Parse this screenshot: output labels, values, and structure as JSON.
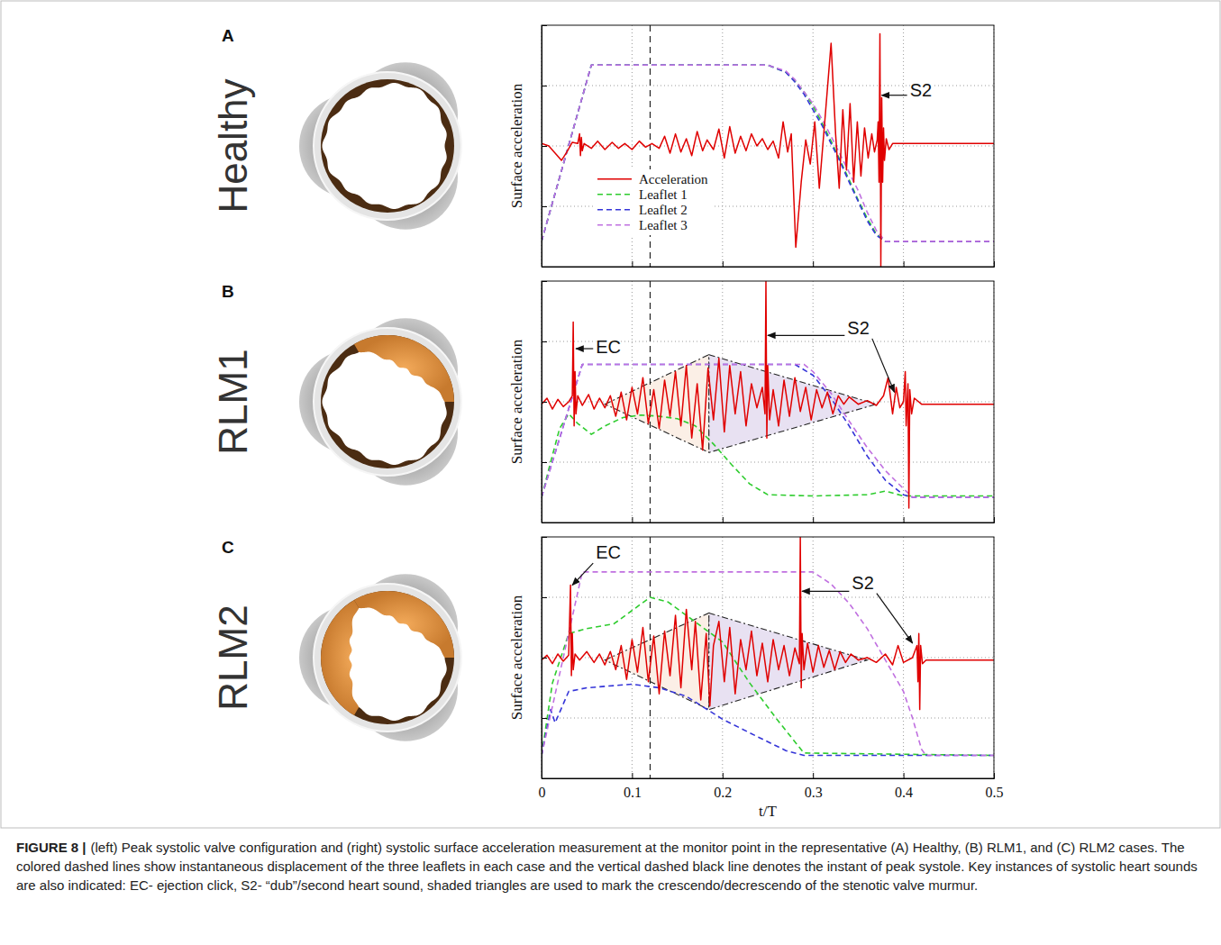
{
  "caption": {
    "label": "FIGURE 8 |",
    "text": "(left) Peak systolic valve configuration and (right) systolic surface acceleration measurement at the monitor point in the representative (A) Healthy, (B) RLM1, and (C) RLM2 cases. The colored dashed lines show instantaneous displacement of the three leaflets in each case and the vertical dashed black line denotes the instant of peak systole. Key instances of systolic heart sounds are also indicated: EC- ejection click, S2- “dub”/second heart sound, shaded triangles are used to mark the crescendo/decrescendo of the stenotic valve murmur."
  },
  "chart_data": [
    {
      "type": "line",
      "panel": "A",
      "title": "Healthy",
      "ylabel": "Surface acceleration",
      "xlim": [
        0,
        0.5
      ],
      "ylim": [
        -1,
        1
      ],
      "xticks": [
        0,
        0.1,
        0.2,
        0.3,
        0.4,
        0.5
      ],
      "yticks": [
        -0.5,
        0,
        0.5
      ],
      "grid": true,
      "tick_labels": false,
      "legend": "lower left",
      "peak_systole": 0.12,
      "series": [
        {
          "name": "Acceleration",
          "color": "#e00000",
          "line_style": "solid",
          "x": [
            0,
            0.008,
            0.015,
            0.022,
            0.028,
            0.034,
            0.04,
            0.042,
            0.043,
            0.044,
            0.045,
            0.047,
            0.055,
            0.062,
            0.07,
            0.078,
            0.085,
            0.092,
            0.1,
            0.108,
            0.115,
            0.122,
            0.13,
            0.136,
            0.142,
            0.148,
            0.154,
            0.16,
            0.166,
            0.172,
            0.178,
            0.183,
            0.19,
            0.196,
            0.202,
            0.208,
            0.214,
            0.22,
            0.226,
            0.232,
            0.238,
            0.244,
            0.25,
            0.256,
            0.262,
            0.267,
            0.272,
            0.276,
            0.281,
            0.287,
            0.292,
            0.297,
            0.302,
            0.307,
            0.313,
            0.32,
            0.325,
            0.329,
            0.333,
            0.337,
            0.341,
            0.345,
            0.349,
            0.353,
            0.357,
            0.361,
            0.365,
            0.368,
            0.371,
            0.372,
            0.373,
            0.374,
            0.375,
            0.376,
            0.377,
            0.378,
            0.379,
            0.381,
            0.384,
            0.388,
            0.45,
            0.5
          ],
          "values": [
            0.02,
            0,
            -0.06,
            -0.12,
            -0.05,
            0.03,
            0.02,
            0.1,
            -0.08,
            0.07,
            -0.04,
            0.02,
            -0.02,
            0.04,
            -0.03,
            0.03,
            -0.02,
            0.02,
            -0.03,
            0.04,
            -0.01,
            0.02,
            -0.02,
            0.08,
            -0.06,
            0.1,
            -0.05,
            0.06,
            -0.08,
            0.12,
            -0.04,
            0.05,
            -0.03,
            0.14,
            -0.1,
            0.16,
            -0.06,
            0.08,
            -0.04,
            0.1,
            0,
            0.06,
            -0.03,
            0.04,
            -0.1,
            0.2,
            -0.05,
            0.1,
            -0.84,
            -0.3,
            0.05,
            -0.15,
            0.2,
            -0.35,
            0.2,
            0.85,
            0.1,
            -0.35,
            0.3,
            -0.2,
            0.35,
            -0.3,
            0.2,
            -0.25,
            0.15,
            -0.1,
            0.1,
            -0.05,
            0.05,
            0.2,
            -0.3,
            0.93,
            -1.0,
            0.4,
            -0.3,
            0.15,
            -0.12,
            0.06,
            -0.03,
            0.02,
            0.02,
            0.02
          ]
        },
        {
          "name": "Leaflet 1",
          "color": "#2ecc2e",
          "line_style": "dashed",
          "x": [
            0,
            0.055,
            0.25,
            0.27,
            0.28,
            0.29,
            0.3,
            0.31,
            0.32,
            0.33,
            0.34,
            0.35,
            0.36,
            0.37,
            0.38,
            0.5
          ],
          "values": [
            -0.79,
            0.67,
            0.67,
            0.61,
            0.54,
            0.45,
            0.33,
            0.19,
            0.04,
            -0.12,
            -0.28,
            -0.45,
            -0.6,
            -0.73,
            -0.79,
            -0.79
          ]
        },
        {
          "name": "Leaflet 2",
          "color": "#3535d8",
          "line_style": "dashed",
          "x": [
            0,
            0.055,
            0.25,
            0.27,
            0.28,
            0.29,
            0.3,
            0.31,
            0.32,
            0.33,
            0.34,
            0.35,
            0.36,
            0.37,
            0.38,
            0.5
          ],
          "values": [
            -0.79,
            0.67,
            0.67,
            0.61,
            0.53,
            0.43,
            0.3,
            0.17,
            0.02,
            -0.13,
            -0.3,
            -0.46,
            -0.62,
            -0.74,
            -0.79,
            -0.79
          ]
        },
        {
          "name": "Leaflet 3",
          "color": "#c070e0",
          "line_style": "dashed",
          "x": [
            0,
            0.055,
            0.25,
            0.27,
            0.28,
            0.29,
            0.3,
            0.31,
            0.32,
            0.33,
            0.34,
            0.35,
            0.36,
            0.37,
            0.38,
            0.5
          ],
          "values": [
            -0.79,
            0.67,
            0.67,
            0.62,
            0.55,
            0.45,
            0.35,
            0.22,
            0.08,
            -0.07,
            -0.22,
            -0.37,
            -0.55,
            -0.7,
            -0.79,
            -0.79
          ]
        }
      ],
      "annotations": [
        {
          "text": "S2",
          "x": 0.407,
          "y": 0.45,
          "targets": [
            [
              0.376,
              0.42
            ]
          ]
        }
      ]
    },
    {
      "type": "line",
      "panel": "B",
      "title": "RLM1",
      "ylabel": "Surface acceleration",
      "xlim": [
        0,
        0.5
      ],
      "ylim": [
        -1,
        1
      ],
      "xticks": [
        0,
        0.1,
        0.2,
        0.3,
        0.4,
        0.5
      ],
      "yticks": [
        -0.5,
        0,
        0.5
      ],
      "grid": true,
      "tick_labels": false,
      "peak_systole": 0.12,
      "murmur": {
        "x": [
          0.07,
          0.185,
          0.37
        ],
        "upper": [
          -0.02,
          0.39,
          -0.02
        ],
        "lower": [
          -0.02,
          -0.42,
          -0.02
        ]
      },
      "series": [
        {
          "color": "#e00000",
          "line_style": "solid",
          "x": [
            0,
            0.006,
            0.012,
            0.018,
            0.024,
            0.03,
            0.034,
            0.035,
            0.036,
            0.037,
            0.038,
            0.04,
            0.045,
            0.052,
            0.058,
            0.064,
            0.07,
            0.076,
            0.082,
            0.088,
            0.094,
            0.1,
            0.106,
            0.112,
            0.118,
            0.124,
            0.13,
            0.136,
            0.142,
            0.148,
            0.154,
            0.16,
            0.166,
            0.172,
            0.178,
            0.184,
            0.19,
            0.196,
            0.202,
            0.208,
            0.214,
            0.22,
            0.226,
            0.232,
            0.238,
            0.244,
            0.247,
            0.248,
            0.249,
            0.25,
            0.252,
            0.256,
            0.262,
            0.268,
            0.274,
            0.28,
            0.286,
            0.292,
            0.298,
            0.304,
            0.31,
            0.316,
            0.322,
            0.328,
            0.334,
            0.34,
            0.35,
            0.36,
            0.37,
            0.378,
            0.383,
            0.388,
            0.392,
            0.396,
            0.4,
            0.402,
            0.403,
            0.405,
            0.406,
            0.407,
            0.409,
            0.412,
            0.42,
            0.5
          ],
          "values": [
            -0.02,
            0.03,
            -0.06,
            0.02,
            -0.04,
            0,
            0.05,
            0.66,
            -0.2,
            0.25,
            -0.1,
            0.05,
            -0.03,
            0.06,
            -0.06,
            0.03,
            -0.05,
            0.05,
            -0.12,
            0.08,
            -0.15,
            0.12,
            -0.1,
            0.2,
            -0.18,
            0.1,
            -0.22,
            0.18,
            -0.12,
            0.25,
            -0.2,
            0.3,
            -0.3,
            0.15,
            -0.4,
            0.28,
            -0.15,
            0.36,
            -0.25,
            0.3,
            -0.1,
            0.25,
            -0.2,
            0.15,
            -0.05,
            0.12,
            -0.1,
            1.0,
            -0.3,
            0.3,
            -0.15,
            0.1,
            -0.2,
            0.18,
            -0.12,
            0.2,
            -0.08,
            0.12,
            -0.15,
            0.1,
            -0.05,
            0.08,
            -0.1,
            0.05,
            -0.02,
            0.04,
            -0.02,
            0.01,
            -0.03,
            0.05,
            0.2,
            -0.1,
            0.12,
            -0.05,
            0,
            0.25,
            -0.2,
            0.15,
            -0.88,
            0.1,
            -0.1,
            0.03,
            -0.02,
            -0.02
          ]
        },
        {
          "color": "#2ecc2e",
          "line_style": "dashed",
          "x": [
            0,
            0.01,
            0.02,
            0.03,
            0.04,
            0.055,
            0.07,
            0.09,
            0.11,
            0.13,
            0.15,
            0.17,
            0.19,
            0.21,
            0.23,
            0.25,
            0.3,
            0.36,
            0.38,
            0.4,
            0.5
          ],
          "values": [
            -0.79,
            -0.5,
            -0.22,
            -0.1,
            -0.18,
            -0.27,
            -0.2,
            -0.13,
            -0.11,
            -0.12,
            -0.14,
            -0.2,
            -0.35,
            -0.52,
            -0.68,
            -0.77,
            -0.78,
            -0.77,
            -0.74,
            -0.78,
            -0.78
          ]
        },
        {
          "color": "#3535d8",
          "line_style": "dashed",
          "x": [
            0,
            0.045,
            0.28,
            0.3,
            0.32,
            0.34,
            0.36,
            0.38,
            0.4,
            0.41,
            0.5
          ],
          "values": [
            -0.79,
            0.31,
            0.31,
            0.22,
            0.03,
            -0.2,
            -0.45,
            -0.65,
            -0.77,
            -0.79,
            -0.79
          ]
        },
        {
          "color": "#c070e0",
          "line_style": "dashed",
          "x": [
            0,
            0.045,
            0.29,
            0.3,
            0.32,
            0.34,
            0.36,
            0.38,
            0.4,
            0.41,
            0.5
          ],
          "values": [
            -0.79,
            0.31,
            0.31,
            0.25,
            0.07,
            -0.16,
            -0.38,
            -0.57,
            -0.72,
            -0.79,
            -0.79
          ]
        }
      ],
      "annotations": [
        {
          "text": "EC",
          "x": 0.06,
          "y": 0.44,
          "targets": [
            [
              0.038,
              0.44
            ]
          ]
        },
        {
          "text": "S2",
          "x": 0.338,
          "y": 0.6,
          "targets": [
            [
              0.25,
              0.55
            ],
            [
              0.39,
              0.08
            ]
          ]
        }
      ]
    },
    {
      "type": "line",
      "panel": "C",
      "title": "RLM2",
      "ylabel": "Surface acceleration",
      "xlabel": "t/T",
      "xlim": [
        0,
        0.5
      ],
      "ylim": [
        -1,
        1
      ],
      "xticks": [
        0,
        0.1,
        0.2,
        0.3,
        0.4,
        0.5
      ],
      "yticks": [
        -0.5,
        0,
        0.5
      ],
      "grid": true,
      "tick_labels": "x",
      "peak_systole": 0.12,
      "murmur": {
        "x": [
          0.07,
          0.185,
          0.36
        ],
        "upper": [
          -0.02,
          0.37,
          -0.02
        ],
        "lower": [
          -0.02,
          -0.43,
          -0.02
        ]
      },
      "series": [
        {
          "color": "#e00000",
          "line_style": "solid",
          "x": [
            0,
            0.006,
            0.012,
            0.018,
            0.024,
            0.03,
            0.032,
            0.033,
            0.034,
            0.035,
            0.037,
            0.042,
            0.05,
            0.058,
            0.064,
            0.07,
            0.076,
            0.082,
            0.088,
            0.094,
            0.1,
            0.106,
            0.112,
            0.118,
            0.124,
            0.13,
            0.136,
            0.142,
            0.148,
            0.154,
            0.16,
            0.166,
            0.17,
            0.176,
            0.182,
            0.186,
            0.19,
            0.196,
            0.202,
            0.208,
            0.214,
            0.22,
            0.226,
            0.232,
            0.238,
            0.244,
            0.25,
            0.256,
            0.262,
            0.268,
            0.274,
            0.28,
            0.285,
            0.286,
            0.287,
            0.288,
            0.29,
            0.294,
            0.3,
            0.306,
            0.312,
            0.318,
            0.324,
            0.33,
            0.336,
            0.342,
            0.35,
            0.36,
            0.37,
            0.38,
            0.388,
            0.394,
            0.4,
            0.41,
            0.415,
            0.416,
            0.417,
            0.418,
            0.419,
            0.421,
            0.425,
            0.5
          ],
          "values": [
            -0.02,
            0.02,
            -0.05,
            0.03,
            -0.03,
            0.02,
            0.6,
            -0.15,
            0.2,
            -0.1,
            0.03,
            -0.02,
            0.05,
            -0.04,
            0.03,
            -0.06,
            0.05,
            -0.1,
            0.1,
            -0.18,
            0.15,
            -0.12,
            0.25,
            -0.2,
            0.18,
            -0.3,
            0.22,
            -0.15,
            0.35,
            -0.25,
            0.4,
            -0.1,
            0.3,
            -0.35,
            0.2,
            -0.4,
            0.1,
            0.3,
            -0.2,
            0.25,
            -0.3,
            0.15,
            -0.1,
            0.22,
            -0.15,
            0.12,
            -0.2,
            0.15,
            -0.1,
            0.1,
            -0.15,
            0.08,
            -0.05,
            1.0,
            -0.25,
            0.2,
            -0.1,
            0.12,
            -0.12,
            0.1,
            -0.08,
            0.06,
            -0.1,
            0.05,
            -0.04,
            0.03,
            -0.02,
            0,
            -0.04,
            0.03,
            -0.06,
            0.1,
            -0.04,
            0,
            0.1,
            -0.2,
            0.2,
            -0.43,
            0.1,
            -0.05,
            -0.02,
            -0.02
          ]
        },
        {
          "color": "#2ecc2e",
          "line_style": "dashed",
          "x": [
            0,
            0.012,
            0.03,
            0.05,
            0.08,
            0.1,
            0.12,
            0.14,
            0.16,
            0.2,
            0.23,
            0.26,
            0.29,
            0.5
          ],
          "values": [
            -0.81,
            -0.21,
            0.2,
            0.24,
            0.28,
            0.39,
            0.5,
            0.46,
            0.35,
            0.13,
            -0.21,
            -0.51,
            -0.79,
            -0.81
          ]
        },
        {
          "color": "#3535d8",
          "line_style": "dashed",
          "x": [
            0,
            0.01,
            0.015,
            0.03,
            0.05,
            0.1,
            0.13,
            0.16,
            0.2,
            0.24,
            0.27,
            0.29,
            0.5
          ],
          "values": [
            -0.81,
            -0.43,
            -0.54,
            -0.28,
            -0.25,
            -0.22,
            -0.25,
            -0.32,
            -0.51,
            -0.66,
            -0.77,
            -0.81,
            -0.81
          ]
        },
        {
          "color": "#c070e0",
          "line_style": "dashed",
          "x": [
            0,
            0.045,
            0.3,
            0.32,
            0.34,
            0.36,
            0.38,
            0.4,
            0.41,
            0.42,
            0.425,
            0.5
          ],
          "values": [
            -0.81,
            0.71,
            0.71,
            0.61,
            0.45,
            0.24,
            -0.02,
            -0.28,
            -0.5,
            -0.76,
            -0.81,
            -0.81
          ]
        }
      ],
      "annotations": [
        {
          "text": "EC",
          "x": 0.06,
          "y": 0.86,
          "targets": [
            [
              0.034,
              0.6
            ]
          ]
        },
        {
          "text": "S2",
          "x": 0.343,
          "y": 0.61,
          "targets": [
            [
              0.288,
              0.55
            ],
            [
              0.41,
              0.12
            ]
          ]
        }
      ]
    }
  ]
}
